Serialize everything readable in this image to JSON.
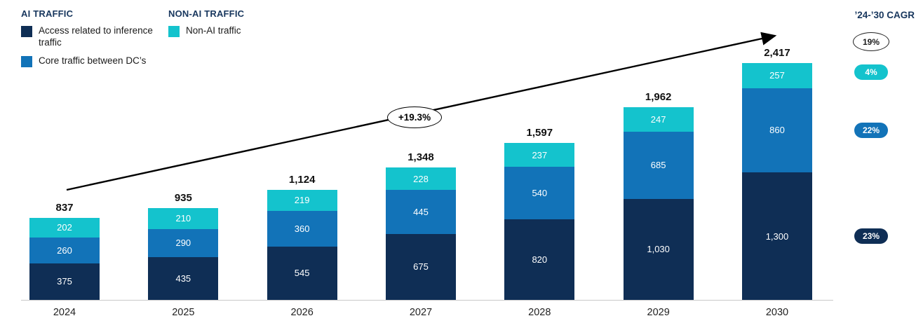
{
  "legend": {
    "ai_header": "AI TRAFFIC",
    "non_ai_header": "NON-AI TRAFFIC",
    "items": [
      {
        "label": "Access related to inference traffic",
        "color": "#0f2e55"
      },
      {
        "label": "Core traffic between DC’s",
        "color": "#1273b8"
      },
      {
        "label": "Non-AI traffic",
        "color": "#14c3cd"
      }
    ]
  },
  "cagr": {
    "header": "’24-’30 CAGR",
    "items": [
      {
        "label": "19%",
        "series": "total",
        "bg": "#ffffff",
        "text": "#1a1a1a",
        "outlined": true
      },
      {
        "label": "4%",
        "series": "non-ai-traffic",
        "bg": "#14c3cd",
        "text": "#ffffff",
        "outlined": false
      },
      {
        "label": "22%",
        "series": "core-traffic-between-dcs",
        "bg": "#1273b8",
        "text": "#ffffff",
        "outlined": false
      },
      {
        "label": "23%",
        "series": "access-inference-traffic",
        "bg": "#0f2e55",
        "text": "#ffffff",
        "outlined": false
      }
    ]
  },
  "chart_data": {
    "type": "bar",
    "stacked": true,
    "categories": [
      "2024",
      "2025",
      "2026",
      "2027",
      "2028",
      "2029",
      "2030"
    ],
    "series": [
      {
        "name": "Access related to inference traffic",
        "color": "#0f2e55",
        "values": [
          375,
          435,
          545,
          675,
          820,
          1030,
          1300
        ]
      },
      {
        "name": "Core traffic between DC’s",
        "color": "#1273b8",
        "values": [
          260,
          290,
          360,
          445,
          540,
          685,
          860
        ]
      },
      {
        "name": "Non-AI traffic",
        "color": "#14c3cd",
        "values": [
          202,
          210,
          219,
          228,
          237,
          247,
          257
        ]
      }
    ],
    "totals": [
      "837",
      "935",
      "1,124",
      "1,348",
      "1,597",
      "1,962",
      "2,417"
    ],
    "annotation": "+19.3%",
    "xlabel": "",
    "ylabel": "",
    "ylim": [
      0,
      2500
    ],
    "grid": false,
    "legend_position": "top-left"
  }
}
